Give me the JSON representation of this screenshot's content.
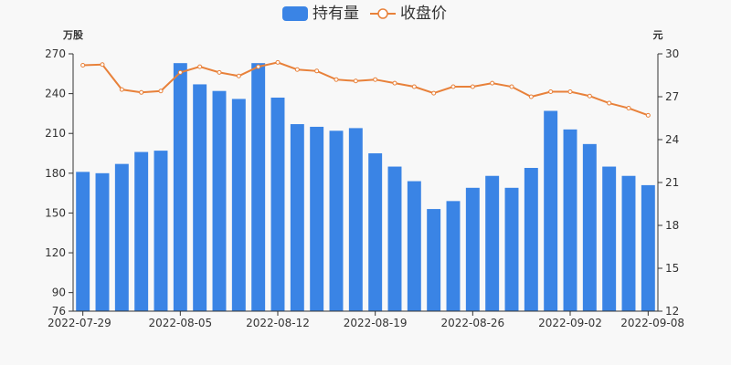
{
  "legend": {
    "holdings_label": "持有量",
    "price_label": "收盘价"
  },
  "colors": {
    "bar": "#3a84e5",
    "line": "#e8813a",
    "axis": "#333333",
    "background": "#f8f8f8"
  },
  "chart_data": {
    "type": "bar",
    "categories": [
      "2022-07-29",
      "2022-08-01",
      "2022-08-02",
      "2022-08-03",
      "2022-08-04",
      "2022-08-05",
      "2022-08-08",
      "2022-08-09",
      "2022-08-10",
      "2022-08-11",
      "2022-08-12",
      "2022-08-15",
      "2022-08-16",
      "2022-08-17",
      "2022-08-18",
      "2022-08-19",
      "2022-08-22",
      "2022-08-23",
      "2022-08-24",
      "2022-08-25",
      "2022-08-26",
      "2022-08-29",
      "2022-08-30",
      "2022-08-31",
      "2022-09-01",
      "2022-09-02",
      "2022-09-05",
      "2022-09-06",
      "2022-09-07",
      "2022-09-08"
    ],
    "x_tick_labels": [
      "2022-07-29",
      "2022-08-05",
      "2022-08-12",
      "2022-08-19",
      "2022-08-26",
      "2022-09-02",
      "2022-09-08"
    ],
    "x_tick_indices": [
      0,
      5,
      10,
      15,
      20,
      25,
      29
    ],
    "series": [
      {
        "name": "持有量",
        "type": "bar",
        "axis": "left",
        "values": [
          181,
          180,
          187,
          196,
          197,
          263,
          247,
          242,
          236,
          263,
          237,
          217,
          215,
          212,
          214,
          195,
          185,
          174,
          153,
          159,
          169,
          178,
          169,
          184,
          227,
          213,
          202,
          185,
          178,
          171
        ]
      },
      {
        "name": "收盘价",
        "type": "line",
        "axis": "right",
        "values": [
          29.2,
          29.25,
          27.5,
          27.3,
          27.4,
          28.7,
          29.1,
          28.7,
          28.45,
          29.1,
          29.4,
          28.9,
          28.8,
          28.2,
          28.1,
          28.2,
          27.95,
          27.7,
          27.25,
          27.7,
          27.7,
          27.95,
          27.7,
          27.0,
          27.35,
          27.35,
          27.05,
          26.55,
          26.2,
          25.7
        ]
      }
    ],
    "y_left": {
      "unit": "万股",
      "ticks": [
        76,
        90,
        120,
        150,
        180,
        210,
        240,
        270
      ],
      "range": [
        76,
        270
      ]
    },
    "y_right": {
      "unit": "元",
      "ticks": [
        12,
        15,
        18,
        21,
        24,
        27,
        30
      ],
      "range": [
        12,
        30
      ]
    },
    "legend_position": "top-center",
    "grid": false
  }
}
